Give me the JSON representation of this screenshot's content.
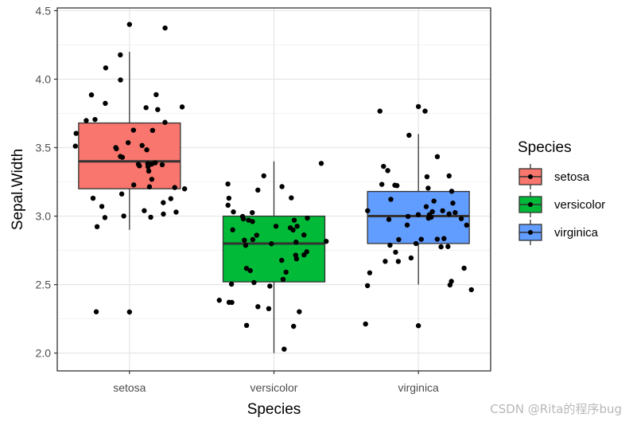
{
  "chart_data": {
    "type": "boxplot",
    "xlabel": "Species",
    "ylabel": "Sepal.Width",
    "ylim": [
      1.87,
      4.52
    ],
    "y_ticks": [
      "2.0",
      "2.5",
      "3.0",
      "3.5",
      "4.0",
      "4.5"
    ],
    "categories": [
      "setosa",
      "versicolor",
      "virginica"
    ],
    "grid": true,
    "legend_position": "right",
    "legend": {
      "title": "Species",
      "items": [
        "setosa",
        "versicolor",
        "virginica"
      ]
    },
    "colors": {
      "setosa": "#F8766D",
      "versicolor": "#00BA38",
      "virginica": "#619CFF"
    },
    "series": [
      {
        "name": "setosa",
        "whisker_low": 2.9,
        "q1": 3.2,
        "median": 3.4,
        "q3": 3.68,
        "whisker_high": 4.2,
        "outliers": [
          2.3,
          4.4
        ],
        "points": [
          3.5,
          3.0,
          3.2,
          3.1,
          3.6,
          3.9,
          3.4,
          3.4,
          2.9,
          3.1,
          3.7,
          3.4,
          3.0,
          3.0,
          4.0,
          4.4,
          3.9,
          3.5,
          3.8,
          3.8,
          3.4,
          3.7,
          3.6,
          3.3,
          3.4,
          3.0,
          3.4,
          3.5,
          3.4,
          3.2,
          3.1,
          3.4,
          4.1,
          4.2,
          3.1,
          3.2,
          3.5,
          3.6,
          3.0,
          3.4,
          3.5,
          2.3,
          3.2,
          3.5,
          3.8,
          3.0,
          3.8,
          3.2,
          3.7,
          3.3
        ]
      },
      {
        "name": "versicolor",
        "whisker_low": 2.0,
        "q1": 2.52,
        "median": 2.8,
        "q3": 3.0,
        "whisker_high": 3.4,
        "outliers": [],
        "points": [
          3.2,
          3.2,
          3.1,
          2.3,
          2.8,
          2.8,
          3.3,
          2.4,
          2.9,
          2.7,
          2.0,
          3.0,
          2.2,
          2.9,
          2.9,
          3.1,
          3.0,
          2.7,
          2.2,
          2.5,
          3.2,
          2.8,
          2.5,
          2.8,
          2.9,
          3.0,
          2.8,
          3.0,
          2.9,
          2.6,
          2.4,
          2.4,
          2.7,
          2.7,
          3.0,
          3.4,
          3.1,
          2.3,
          3.0,
          2.5,
          2.6,
          3.0,
          2.6,
          2.3,
          2.7,
          3.0,
          2.9,
          2.9,
          2.5,
          2.8
        ]
      },
      {
        "name": "virginica",
        "whisker_low": 2.5,
        "q1": 2.8,
        "median": 3.0,
        "q3": 3.18,
        "whisker_high": 3.6,
        "outliers": [
          2.2,
          3.8
        ],
        "points": [
          3.3,
          2.7,
          3.0,
          2.9,
          3.0,
          3.0,
          2.5,
          2.9,
          2.5,
          3.6,
          3.2,
          2.7,
          3.0,
          2.5,
          2.8,
          3.2,
          3.0,
          3.8,
          2.6,
          2.2,
          3.2,
          2.8,
          2.8,
          2.7,
          3.3,
          3.2,
          2.8,
          3.0,
          2.8,
          3.0,
          2.8,
          3.8,
          2.8,
          2.8,
          2.6,
          3.0,
          3.4,
          3.1,
          3.0,
          3.1,
          3.1,
          3.1,
          2.7,
          3.2,
          3.3,
          3.0,
          2.5,
          3.0,
          3.4,
          3.0
        ]
      }
    ]
  },
  "watermark": "CSDN @Rita的程序bug"
}
